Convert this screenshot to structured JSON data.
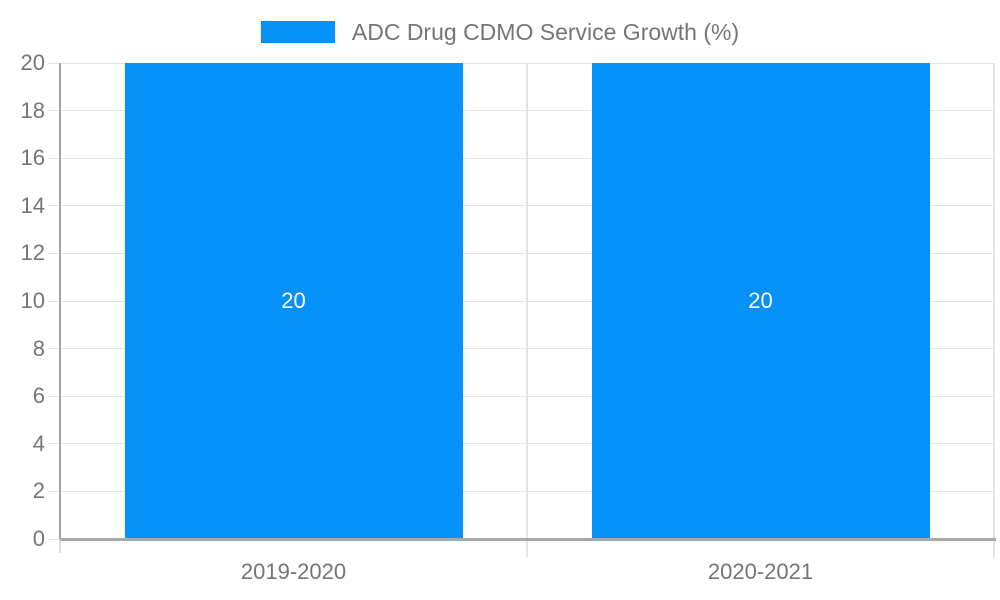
{
  "chart_data": {
    "type": "bar",
    "title": "ADC Drug CDMO Service Growth (%)",
    "categories": [
      "2019-2020",
      "2020-2021"
    ],
    "values": [
      20,
      20
    ],
    "bar_labels": [
      "20",
      "20"
    ],
    "series": [
      {
        "name": "ADC Drug CDMO Service Growth (%)",
        "values": [
          20,
          20
        ]
      }
    ],
    "xlabel": "",
    "ylabel": "",
    "ylim": [
      0,
      20
    ],
    "yticks": [
      0,
      2,
      4,
      6,
      8,
      10,
      12,
      14,
      16,
      18,
      20
    ],
    "ytick_labels": [
      "0",
      "2",
      "4",
      "6",
      "8",
      "10",
      "12",
      "14",
      "16",
      "18",
      "20"
    ],
    "grid": true,
    "legend_position": "top"
  },
  "legend": {
    "label": "ADC Drug CDMO Service Growth (%)"
  },
  "colors": {
    "bar": "#0691f8",
    "axis_text": "#757575",
    "gridline": "#e4e4e4",
    "axis_line": "#a3a3a3",
    "baseline": "#a9a9a9",
    "below_tick": "#e0e0e0",
    "bar_label": "#ffffff",
    "background": "#ffffff"
  }
}
